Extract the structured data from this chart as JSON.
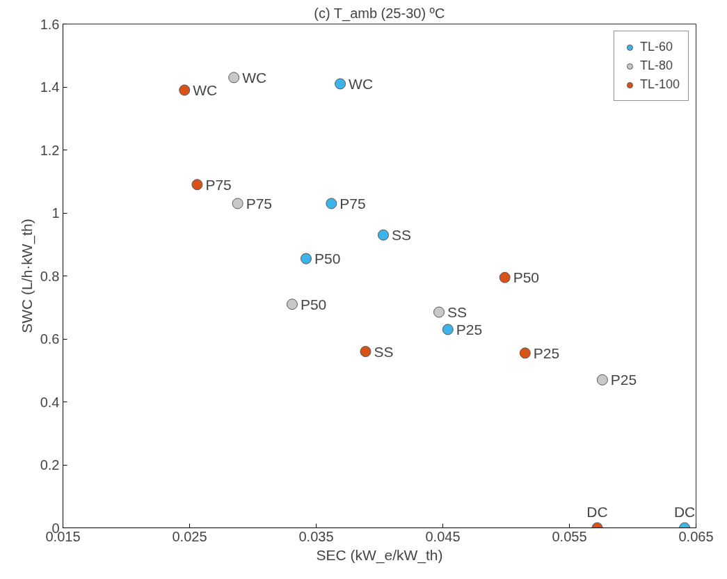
{
  "chart_data": {
    "type": "scatter",
    "title": "(c) T_amb (25-30) ºC",
    "xlabel": "SEC (kW_e/kW_th)",
    "ylabel": "SWC (L/h·kW_th)",
    "xlim": [
      0.015,
      0.065
    ],
    "xticks": [
      0.015,
      0.025,
      0.035,
      0.045,
      0.055,
      0.065
    ],
    "ylim": [
      0,
      1.6
    ],
    "yticks": [
      0,
      0.2,
      0.4,
      0.6,
      0.8,
      1,
      1.2,
      1.4,
      1.6
    ],
    "grid": false,
    "legend": "top right",
    "marker": "circle",
    "series": [
      {
        "name": "TL-60",
        "color": "#3cb4e9",
        "x": [
          0.0369,
          0.0362,
          0.0403,
          0.0342,
          0.0454,
          0.0641
        ],
        "values": [
          1.41,
          1.03,
          0.93,
          0.855,
          0.63,
          0
        ]
      },
      {
        "name": "TL-80",
        "color": "#c8c8c8",
        "x": [
          0.0285,
          0.0288,
          0.0331,
          0.0447,
          0.0576
        ],
        "values": [
          1.43,
          1.03,
          0.71,
          0.685,
          0.47
        ]
      },
      {
        "name": "TL-100",
        "color": "#d95319",
        "x": [
          0.0246,
          0.0256,
          0.0389,
          0.0499,
          0.0515,
          0.0572
        ],
        "values": [
          1.39,
          1.09,
          0.56,
          0.795,
          0.555,
          0
        ]
      }
    ],
    "annotations": [
      {
        "text": "WC",
        "x": 0.0369,
        "y": 1.41
      },
      {
        "text": "P75",
        "x": 0.0362,
        "y": 1.03
      },
      {
        "text": "SS",
        "x": 0.0403,
        "y": 0.93
      },
      {
        "text": "P50",
        "x": 0.0342,
        "y": 0.855
      },
      {
        "text": "P25",
        "x": 0.0454,
        "y": 0.63
      },
      {
        "text": "DC",
        "x": 0.0641,
        "y": 0
      },
      {
        "text": "WC",
        "x": 0.0285,
        "y": 1.43
      },
      {
        "text": "P75",
        "x": 0.0288,
        "y": 1.03
      },
      {
        "text": "P50",
        "x": 0.0331,
        "y": 0.71
      },
      {
        "text": "SS",
        "x": 0.0447,
        "y": 0.685
      },
      {
        "text": "P25",
        "x": 0.0576,
        "y": 0.47
      },
      {
        "text": "WC",
        "x": 0.0246,
        "y": 1.39
      },
      {
        "text": "P75",
        "x": 0.0256,
        "y": 1.09
      },
      {
        "text": "SS",
        "x": 0.0389,
        "y": 0.56
      },
      {
        "text": "P50",
        "x": 0.0499,
        "y": 0.795
      },
      {
        "text": "P25",
        "x": 0.0515,
        "y": 0.555
      },
      {
        "text": "DC",
        "x": 0.0572,
        "y": 0
      }
    ]
  }
}
